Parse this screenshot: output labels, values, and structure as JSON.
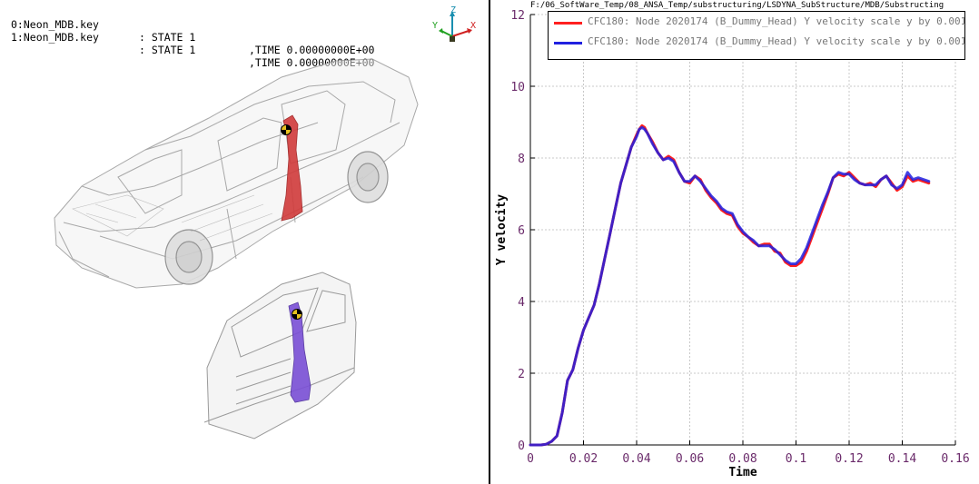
{
  "viewer": {
    "states": [
      {
        "file": "0:Neon_MDB.key",
        "state": ": STATE 1",
        "time": ",TIME 0.00000000E+00"
      },
      {
        "file": "1:Neon_MDB.key",
        "state": ": STATE 1",
        "time": ",TIME 0.00000000E+00"
      }
    ],
    "triad": {
      "x": "X",
      "y": "Y",
      "z": "Z"
    },
    "colors": {
      "pillar_red": "#d13b3b",
      "pillar_purple": "#7a4fd6",
      "body_gray": "#9a9a9a"
    }
  },
  "chart_panel": {
    "file_path": "F:/06_SoftWare_Temp/08_ANSA_Temp/substructuring/LSDYNA_SubStructure/MDB/Substructing"
  },
  "chart_data": {
    "type": "line",
    "xlabel": "Time",
    "ylabel": "Y velocity",
    "xlim": [
      0,
      0.16
    ],
    "ylim": [
      0,
      12
    ],
    "xticks": [
      "0",
      "0.02",
      "0.04",
      "0.06",
      "0.08",
      "0.1",
      "0.12",
      "0.14",
      "0.16"
    ],
    "yticks": [
      "0",
      "2",
      "4",
      "6",
      "8",
      "10",
      "12"
    ],
    "grid": true,
    "legend_position": "top",
    "series": [
      {
        "name": "CFC180: Node 2020174 (B_Dummy_Head) Y velocity scale y by 0.001",
        "color": "#ff2020",
        "x": [
          0,
          0.004,
          0.006,
          0.008,
          0.01,
          0.012,
          0.014,
          0.016,
          0.018,
          0.02,
          0.022,
          0.024,
          0.026,
          0.028,
          0.03,
          0.032,
          0.034,
          0.036,
          0.038,
          0.04,
          0.041,
          0.042,
          0.043,
          0.044,
          0.046,
          0.048,
          0.05,
          0.052,
          0.054,
          0.056,
          0.058,
          0.06,
          0.062,
          0.064,
          0.066,
          0.068,
          0.07,
          0.072,
          0.074,
          0.076,
          0.078,
          0.08,
          0.082,
          0.084,
          0.086,
          0.088,
          0.09,
          0.092,
          0.094,
          0.096,
          0.098,
          0.1,
          0.102,
          0.104,
          0.106,
          0.108,
          0.11,
          0.112,
          0.114,
          0.116,
          0.118,
          0.12,
          0.122,
          0.124,
          0.126,
          0.128,
          0.13,
          0.132,
          0.134,
          0.136,
          0.138,
          0.14,
          0.142,
          0.144,
          0.146,
          0.148,
          0.15
        ],
        "y": [
          0,
          0,
          0.02,
          0.1,
          0.25,
          0.9,
          1.8,
          2.1,
          2.7,
          3.2,
          3.55,
          3.9,
          4.5,
          5.2,
          5.9,
          6.6,
          7.3,
          7.8,
          8.3,
          8.65,
          8.8,
          8.9,
          8.85,
          8.7,
          8.45,
          8.15,
          7.95,
          8.05,
          7.95,
          7.6,
          7.35,
          7.3,
          7.5,
          7.4,
          7.1,
          6.9,
          6.75,
          6.55,
          6.45,
          6.4,
          6.1,
          5.9,
          5.8,
          5.65,
          5.55,
          5.6,
          5.6,
          5.4,
          5.35,
          5.1,
          5.0,
          5.0,
          5.1,
          5.4,
          5.8,
          6.2,
          6.6,
          7.0,
          7.45,
          7.55,
          7.5,
          7.6,
          7.45,
          7.3,
          7.25,
          7.3,
          7.2,
          7.4,
          7.5,
          7.3,
          7.1,
          7.2,
          7.5,
          7.35,
          7.4,
          7.35,
          7.3
        ]
      },
      {
        "name": "CFC180: Node 2020174 (B_Dummy_Head) Y velocity scale y by 0.001",
        "color": "#2020e0",
        "x": [
          0,
          0.004,
          0.006,
          0.008,
          0.01,
          0.012,
          0.014,
          0.016,
          0.018,
          0.02,
          0.022,
          0.024,
          0.026,
          0.028,
          0.03,
          0.032,
          0.034,
          0.036,
          0.038,
          0.04,
          0.041,
          0.042,
          0.043,
          0.044,
          0.046,
          0.048,
          0.05,
          0.052,
          0.054,
          0.056,
          0.058,
          0.06,
          0.062,
          0.064,
          0.066,
          0.068,
          0.07,
          0.072,
          0.074,
          0.076,
          0.078,
          0.08,
          0.082,
          0.084,
          0.086,
          0.088,
          0.09,
          0.092,
          0.094,
          0.096,
          0.098,
          0.1,
          0.102,
          0.104,
          0.106,
          0.108,
          0.11,
          0.112,
          0.114,
          0.116,
          0.118,
          0.12,
          0.122,
          0.124,
          0.126,
          0.128,
          0.13,
          0.132,
          0.134,
          0.136,
          0.138,
          0.14,
          0.142,
          0.144,
          0.146,
          0.148,
          0.15
        ],
        "y": [
          0,
          0,
          0.02,
          0.1,
          0.25,
          0.9,
          1.8,
          2.1,
          2.7,
          3.2,
          3.55,
          3.9,
          4.5,
          5.2,
          5.9,
          6.6,
          7.3,
          7.8,
          8.3,
          8.6,
          8.8,
          8.85,
          8.8,
          8.7,
          8.4,
          8.15,
          7.95,
          8.0,
          7.9,
          7.6,
          7.35,
          7.35,
          7.5,
          7.35,
          7.15,
          6.95,
          6.8,
          6.6,
          6.5,
          6.45,
          6.15,
          5.95,
          5.8,
          5.7,
          5.55,
          5.55,
          5.55,
          5.45,
          5.3,
          5.15,
          5.05,
          5.05,
          5.2,
          5.5,
          5.9,
          6.3,
          6.7,
          7.05,
          7.45,
          7.6,
          7.55,
          7.55,
          7.4,
          7.3,
          7.25,
          7.25,
          7.25,
          7.4,
          7.5,
          7.25,
          7.15,
          7.25,
          7.6,
          7.4,
          7.45,
          7.4,
          7.35
        ]
      }
    ]
  }
}
